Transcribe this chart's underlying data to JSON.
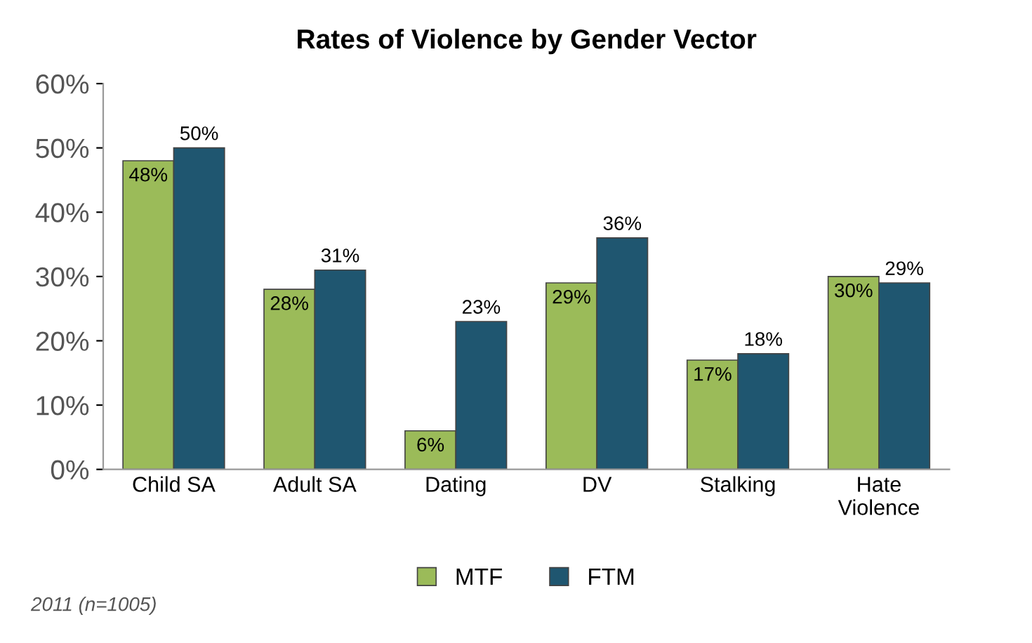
{
  "chart_data": {
    "type": "bar",
    "title": "Rates of Violence by Gender Vector",
    "categories": [
      "Child SA",
      "Adult SA",
      "Dating",
      "DV",
      "Stalking",
      "Hate\nViolence"
    ],
    "series": [
      {
        "name": "MTF",
        "color": "#9bbb59",
        "values": [
          48,
          28,
          6,
          29,
          17,
          30
        ],
        "value_labels": [
          "48%",
          "28%",
          "6%",
          "29%",
          "17%",
          "30%"
        ]
      },
      {
        "name": "FTM",
        "color": "#1f5670",
        "values": [
          50,
          31,
          23,
          36,
          18,
          29
        ],
        "value_labels": [
          "50%",
          "31%",
          "23%",
          "36%",
          "18%",
          "29%"
        ]
      }
    ],
    "ylim": [
      0,
      60
    ],
    "yticks": [
      {
        "value": 0,
        "label": "0%"
      },
      {
        "value": 10,
        "label": "10%"
      },
      {
        "value": 20,
        "label": "20%"
      },
      {
        "value": 30,
        "label": "30%"
      },
      {
        "value": 40,
        "label": "40%"
      },
      {
        "value": 50,
        "label": "50%"
      },
      {
        "value": 60,
        "label": "60%"
      }
    ],
    "legend": "bottom",
    "annotations": [
      "2011 (n=1005)"
    ]
  }
}
